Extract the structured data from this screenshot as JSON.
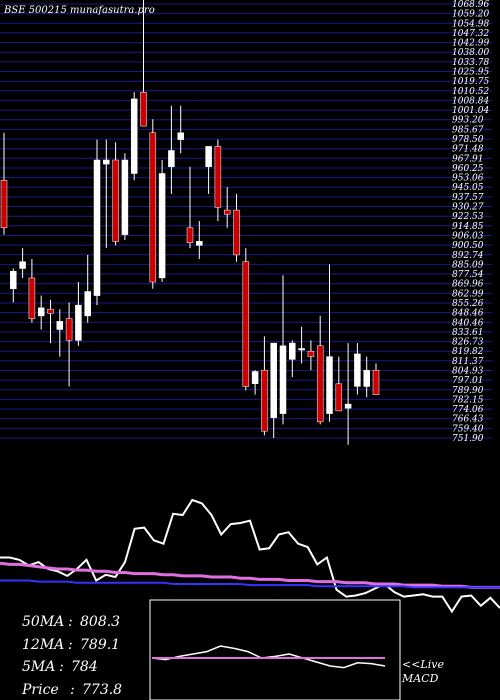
{
  "header": {
    "title": "BSE 500215 munafasutra.pro"
  },
  "ma_panel": {
    "rows": [
      {
        "label": "50MA",
        "value": "808.3"
      },
      {
        "label": "12MA",
        "value": "789.1"
      },
      {
        "label": "5MA",
        "value": "784"
      },
      {
        "label": "Price",
        "value": "773.8"
      }
    ],
    "separator": ":"
  },
  "macd_panel": {
    "label": "<<Live MACD"
  },
  "colors": {
    "background": "#000000",
    "gridline": "#1a1a8c",
    "bull": "#ffffff",
    "bear": "#cc0000",
    "ma_pink": "#e070e0",
    "ma_blue": "#3333ff",
    "price_line": "#ffffff",
    "text": "#ffffff"
  },
  "chart_data": [
    {
      "type": "candlestick",
      "title": "BSE 500215 munafasutra.pro",
      "ylim": [
        740,
        1060
      ],
      "y_tick_labels": [
        "1068.96",
        "1059.20",
        "1054.98",
        "1047.32",
        "1042.99",
        "1038.00",
        "1033.78",
        "1025.95",
        "1019.75",
        "1010.52",
        "1008.84",
        "1001.04",
        "993.20",
        "985.67",
        "978.50",
        "971.48",
        "967.91",
        "960.25",
        "953.06",
        "945.05",
        "937.57",
        "930.27",
        "922.53",
        "914.85",
        "906.03",
        "900.50",
        "892.74",
        "885.09",
        "877.54",
        "869.96",
        "862.99",
        "855.26",
        "848.46",
        "840.46",
        "833.61",
        "826.73",
        "819.82",
        "811.37",
        "804.93",
        "797.01",
        "789.90",
        "782.15",
        "774.06",
        "766.43",
        "759.40",
        "751.90"
      ],
      "candles": [
        {
          "o": 930,
          "h": 965,
          "l": 890,
          "c": 895
        },
        {
          "o": 850,
          "h": 865,
          "l": 840,
          "c": 863
        },
        {
          "o": 865,
          "h": 880,
          "l": 858,
          "c": 870
        },
        {
          "o": 858,
          "h": 872,
          "l": 825,
          "c": 828
        },
        {
          "o": 830,
          "h": 845,
          "l": 820,
          "c": 836
        },
        {
          "o": 835,
          "h": 842,
          "l": 810,
          "c": 832
        },
        {
          "o": 820,
          "h": 835,
          "l": 800,
          "c": 826
        },
        {
          "o": 828,
          "h": 840,
          "l": 778,
          "c": 812
        },
        {
          "o": 812,
          "h": 855,
          "l": 808,
          "c": 838
        },
        {
          "o": 830,
          "h": 875,
          "l": 825,
          "c": 848
        },
        {
          "o": 845,
          "h": 960,
          "l": 838,
          "c": 945
        },
        {
          "o": 942,
          "h": 960,
          "l": 880,
          "c": 945
        },
        {
          "o": 945,
          "h": 958,
          "l": 882,
          "c": 885
        },
        {
          "o": 890,
          "h": 950,
          "l": 886,
          "c": 945
        },
        {
          "o": 935,
          "h": 995,
          "l": 930,
          "c": 990
        },
        {
          "o": 995,
          "h": 1085,
          "l": 970,
          "c": 970
        },
        {
          "o": 965,
          "h": 975,
          "l": 850,
          "c": 855
        },
        {
          "o": 858,
          "h": 945,
          "l": 855,
          "c": 935
        },
        {
          "o": 940,
          "h": 985,
          "l": 920,
          "c": 952
        },
        {
          "o": 960,
          "h": 985,
          "l": 950,
          "c": 965
        },
        {
          "o": 895,
          "h": 940,
          "l": 880,
          "c": 884
        },
        {
          "o": 882,
          "h": 900,
          "l": 872,
          "c": 885
        },
        {
          "o": 940,
          "h": 955,
          "l": 920,
          "c": 955
        },
        {
          "o": 955,
          "h": 960,
          "l": 900,
          "c": 910
        },
        {
          "o": 908,
          "h": 925,
          "l": 895,
          "c": 905
        },
        {
          "o": 908,
          "h": 920,
          "l": 870,
          "c": 875
        },
        {
          "o": 870,
          "h": 880,
          "l": 775,
          "c": 778
        },
        {
          "o": 780,
          "h": 790,
          "l": 772,
          "c": 789
        },
        {
          "o": 790,
          "h": 815,
          "l": 742,
          "c": 745
        },
        {
          "o": 755,
          "h": 810,
          "l": 740,
          "c": 810
        },
        {
          "o": 758,
          "h": 860,
          "l": 750,
          "c": 808
        },
        {
          "o": 798,
          "h": 812,
          "l": 785,
          "c": 810
        },
        {
          "o": 806,
          "h": 822,
          "l": 795,
          "c": 806
        },
        {
          "o": 804,
          "h": 812,
          "l": 790,
          "c": 800
        },
        {
          "o": 808,
          "h": 830,
          "l": 750,
          "c": 752
        },
        {
          "o": 758,
          "h": 868,
          "l": 752,
          "c": 800
        },
        {
          "o": 780,
          "h": 800,
          "l": 760,
          "c": 760
        },
        {
          "o": 762,
          "h": 810,
          "l": 735,
          "c": 765
        },
        {
          "o": 778,
          "h": 810,
          "l": 772,
          "c": 802
        },
        {
          "o": 778,
          "h": 800,
          "l": 770,
          "c": 790
        },
        {
          "o": 790,
          "h": 795,
          "l": 772,
          "c": 772
        }
      ]
    },
    {
      "type": "line",
      "name": "moving averages",
      "ylim": [
        0,
        100
      ],
      "series": [
        {
          "color": "#ffffff",
          "values": [
            50,
            50,
            48,
            43,
            46,
            40,
            38,
            34,
            40,
            48,
            30,
            35,
            33,
            46,
            75,
            76,
            65,
            62,
            88,
            87,
            100,
            97,
            87,
            70,
            79,
            80,
            82,
            57,
            58,
            70,
            72,
            62,
            59,
            44,
            50,
            22,
            16,
            17,
            19,
            23,
            27,
            20,
            16,
            17,
            18,
            16,
            16,
            3,
            16,
            17,
            8,
            15,
            6
          ]
        },
        {
          "color": "#e070e0",
          "values": [
            45,
            44,
            44,
            43,
            42,
            41,
            40,
            40,
            39,
            39,
            38,
            38,
            37,
            37,
            36,
            36,
            36,
            35,
            35,
            34,
            34,
            34,
            33,
            33,
            33,
            32,
            32,
            31,
            31,
            31,
            30,
            30,
            30,
            29,
            29,
            29,
            28,
            28,
            28,
            27,
            27,
            27,
            26,
            26,
            26,
            26,
            25,
            25,
            25,
            24,
            24,
            24,
            24
          ]
        },
        {
          "color": "#3333ff",
          "values": [
            30,
            30,
            30,
            30,
            29,
            29,
            29,
            29,
            28,
            28,
            28,
            28,
            28,
            28,
            28,
            28,
            28,
            28,
            27,
            27,
            27,
            27,
            27,
            27,
            27,
            27,
            26,
            26,
            26,
            26,
            26,
            26,
            26,
            25,
            25,
            25,
            25,
            25,
            25,
            25,
            25,
            25,
            25,
            24,
            24,
            24,
            24,
            24,
            24,
            24,
            24,
            24,
            24
          ]
        }
      ]
    },
    {
      "type": "line",
      "name": "macd",
      "ylim": [
        0,
        100
      ],
      "series": [
        {
          "color": "#ffffff",
          "values": [
            40,
            38,
            42,
            45,
            48,
            55,
            52,
            48,
            40,
            42,
            45,
            40,
            35,
            30,
            28,
            34,
            33,
            30
          ]
        },
        {
          "color": "#e070e0",
          "values": [
            40,
            40,
            40,
            40,
            40,
            40,
            40,
            40,
            40,
            40,
            40,
            40,
            40,
            40,
            40,
            40,
            40,
            40
          ]
        }
      ]
    }
  ]
}
